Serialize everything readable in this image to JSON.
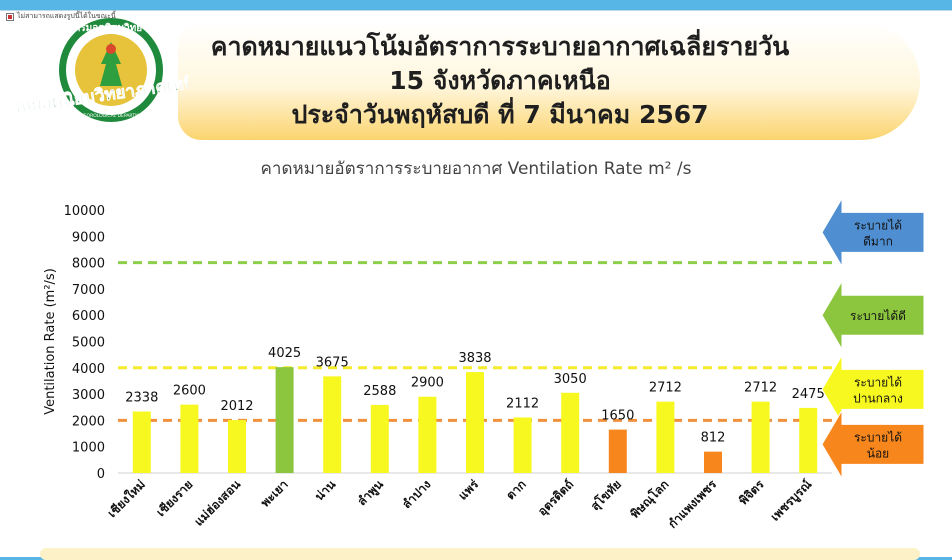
{
  "window_caption": "ไม่สามารถแสดงรูปนี้ได้ในขณะนี้",
  "logo": {
    "ring_text": "กรมอุตุนิยมวิทยา",
    "ring_text_en": "METEOROLOGICAL DEPARTMENT",
    "center_text": "ศูนย์อุตุนิยมวิทยาภาคเหนือ"
  },
  "header": {
    "line1": "คาดหมายแนวโน้มอัตราการระบายอากาศเฉลี่ยรายวัน",
    "line2": "15 จังหวัดภาคเหนือ",
    "line3": "ประจำวันพฤหัสบดี ที่ 7 มีนาคม 2567"
  },
  "colors": {
    "yellow": "#f8f821",
    "green": "#8cc63f",
    "orange": "#f7861c",
    "blue": "#4f8fd1",
    "line_green": "#8ccf4a",
    "line_yellow": "#f4ec2a",
    "line_orange": "#f0913e"
  },
  "chart_data": {
    "type": "bar",
    "title": "คาดหมายอัตราการระบายอากาศ Ventilation Rate m² /s",
    "ylabel": "Ventilation Rate (m²/s)",
    "xlabel": "",
    "ylim": [
      0,
      10000
    ],
    "yticks": [
      0,
      1000,
      2000,
      3000,
      4000,
      5000,
      6000,
      7000,
      8000,
      9000,
      10000
    ],
    "grid": false,
    "categories": [
      "เชียงใหม่",
      "เชียงราย",
      "แม่ฮ่องสอน",
      "พะเยา",
      "น่าน",
      "ลำพูน",
      "ลำปาง",
      "แพร่",
      "ตาก",
      "อุตรดิตถ์",
      "สุโขทัย",
      "พิษณุโลก",
      "กำแพงเพชร",
      "พิจิตร",
      "เพชรบูรณ์"
    ],
    "values": [
      2338,
      2600,
      2012,
      4025,
      3675,
      2588,
      2900,
      3838,
      2112,
      3050,
      1650,
      2712,
      812,
      2712,
      2475
    ],
    "bar_colors": [
      "yellow",
      "yellow",
      "yellow",
      "green",
      "yellow",
      "yellow",
      "yellow",
      "yellow",
      "yellow",
      "yellow",
      "orange",
      "yellow",
      "orange",
      "yellow",
      "yellow"
    ],
    "threshold_lines": [
      {
        "value": 8000,
        "color": "line_green"
      },
      {
        "value": 4000,
        "color": "line_yellow"
      },
      {
        "value": 2000,
        "color": "line_orange"
      }
    ],
    "legend": [
      {
        "label": [
          "ระบายได้",
          "ดีมาก"
        ],
        "color": "blue",
        "center_value": 9150
      },
      {
        "label": [
          "ระบายได้ดี"
        ],
        "color": "green",
        "center_value": 6000
      },
      {
        "label": [
          "ระบายได้",
          "ปานกลาง"
        ],
        "color": "yellow",
        "center_value": 3180
      },
      {
        "label": [
          "ระบายได้",
          "น้อย"
        ],
        "color": "orange",
        "center_value": 1090
      }
    ],
    "legend_placement": "right"
  }
}
